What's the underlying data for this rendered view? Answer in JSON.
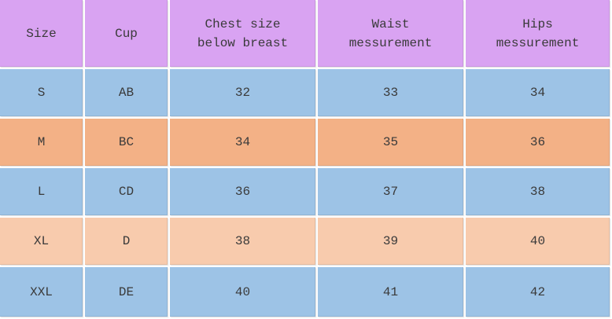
{
  "table": {
    "header": [
      [
        "Size"
      ],
      [
        "Cup"
      ],
      [
        "Chest size",
        "below breast"
      ],
      [
        "Waist",
        "messurement"
      ],
      [
        "Hips",
        "messurement"
      ]
    ],
    "rows": [
      [
        "S",
        "AB",
        32,
        33,
        34
      ],
      [
        "M",
        "BC",
        34,
        35,
        36
      ],
      [
        "L",
        "CD",
        36,
        37,
        38
      ],
      [
        "XL",
        "D",
        38,
        39,
        40
      ],
      [
        "XXL",
        "DE",
        40,
        41,
        42
      ]
    ]
  }
}
